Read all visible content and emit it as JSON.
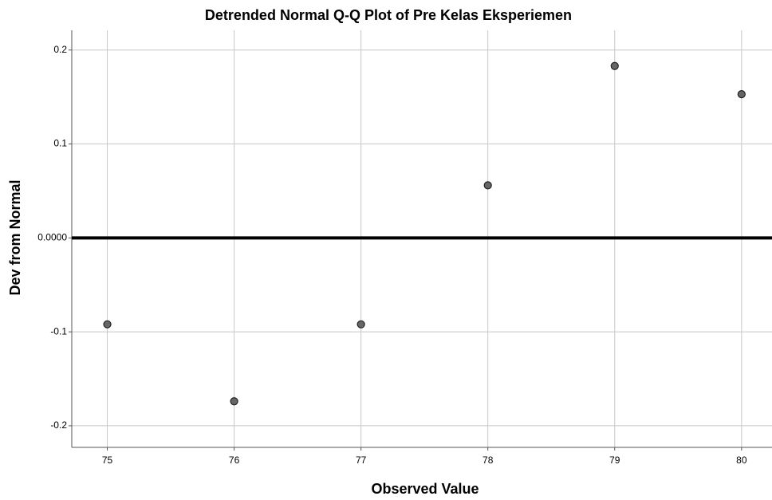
{
  "chart_data": {
    "type": "scatter",
    "title": "Detrended Normal Q-Q Plot of Pre Kelas Eksperiemen",
    "x_label": "Observed Value",
    "y_label": "Dev from Normal",
    "x": [
      75,
      76,
      77,
      78,
      79,
      80
    ],
    "values": [
      -0.092,
      -0.174,
      -0.092,
      0.056,
      0.183,
      0.153
    ],
    "color": "#666666",
    "xlim": [
      74.72,
      80.24
    ],
    "ylim": [
      -0.223,
      0.221
    ],
    "xticks": [
      75,
      76,
      77,
      78,
      79,
      80
    ],
    "yticks": [
      -0.2,
      -0.1,
      {
        "value": 0,
        "label": "0.0000"
      },
      0.1,
      0.2
    ],
    "reference_line": 0,
    "grid": true
  }
}
